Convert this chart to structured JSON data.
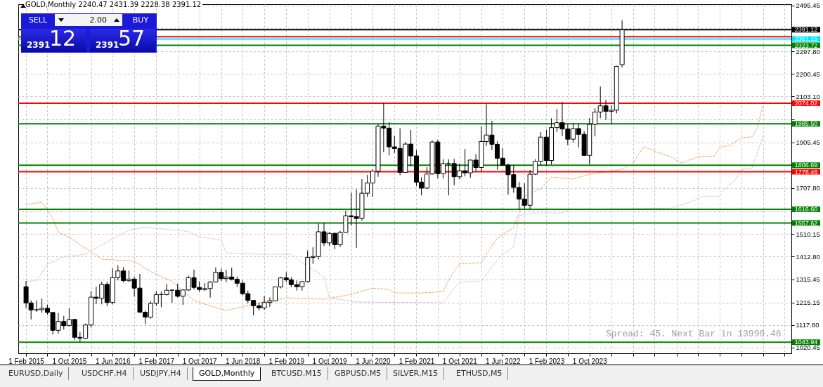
{
  "chart_data": {
    "type": "candlestick",
    "title": "GOLD,Monthly  2240.47 2431.39 2228.38 2391.12",
    "x": [
      "2015-02",
      "2015-03",
      "2015-04",
      "2015-05",
      "2015-06",
      "2015-07",
      "2015-08",
      "2015-09",
      "2015-10",
      "2015-11",
      "2015-12",
      "2016-01",
      "2016-02",
      "2016-03",
      "2016-04",
      "2016-05",
      "2016-06",
      "2016-07",
      "2016-08",
      "2016-09",
      "2016-10",
      "2016-11",
      "2016-12",
      "2017-01",
      "2017-02",
      "2017-03",
      "2017-04",
      "2017-05",
      "2017-06",
      "2017-07",
      "2017-08",
      "2017-09",
      "2017-10",
      "2017-11",
      "2017-12",
      "2018-01",
      "2018-02",
      "2018-03",
      "2018-04",
      "2018-05",
      "2018-06",
      "2018-07",
      "2018-08",
      "2018-09",
      "2018-10",
      "2018-11",
      "2018-12",
      "2019-01",
      "2019-02",
      "2019-03",
      "2019-04",
      "2019-05",
      "2019-06",
      "2019-07",
      "2019-08",
      "2019-09",
      "2019-10",
      "2019-11",
      "2019-12",
      "2020-01",
      "2020-02",
      "2020-03",
      "2020-04",
      "2020-05",
      "2020-06",
      "2020-07",
      "2020-08",
      "2020-09",
      "2020-10",
      "2020-11",
      "2020-12",
      "2021-01",
      "2021-02",
      "2021-03",
      "2021-04",
      "2021-05",
      "2021-06",
      "2021-07",
      "2021-08",
      "2021-09",
      "2021-10",
      "2021-11",
      "2021-12",
      "2022-01",
      "2022-02",
      "2022-03",
      "2022-04",
      "2022-05",
      "2022-06",
      "2022-07",
      "2022-08",
      "2022-09",
      "2022-10",
      "2022-11",
      "2022-12",
      "2023-01",
      "2023-02",
      "2023-03",
      "2023-04",
      "2023-05",
      "2023-06",
      "2023-07",
      "2023-08",
      "2023-09",
      "2023-10",
      "2023-11",
      "2023-12",
      "2024-01",
      "2024-02",
      "2024-03",
      "2024-04"
    ],
    "ohlc": [
      [
        1283,
        1308,
        1191,
        1213
      ],
      [
        1213,
        1224,
        1142,
        1183
      ],
      [
        1183,
        1224,
        1175,
        1184
      ],
      [
        1184,
        1232,
        1170,
        1190
      ],
      [
        1190,
        1205,
        1162,
        1172
      ],
      [
        1172,
        1175,
        1077,
        1095
      ],
      [
        1095,
        1170,
        1080,
        1133
      ],
      [
        1133,
        1157,
        1098,
        1115
      ],
      [
        1115,
        1191,
        1113,
        1142
      ],
      [
        1142,
        1142,
        1052,
        1065
      ],
      [
        1065,
        1088,
        1046,
        1061
      ],
      [
        1061,
        1124,
        1058,
        1118
      ],
      [
        1118,
        1263,
        1107,
        1238
      ],
      [
        1238,
        1283,
        1208,
        1233
      ],
      [
        1233,
        1304,
        1207,
        1293
      ],
      [
        1293,
        1304,
        1199,
        1215
      ],
      [
        1215,
        1362,
        1207,
        1322
      ],
      [
        1322,
        1375,
        1310,
        1351
      ],
      [
        1351,
        1367,
        1302,
        1309
      ],
      [
        1309,
        1353,
        1302,
        1316
      ],
      [
        1316,
        1326,
        1241,
        1277
      ],
      [
        1277,
        1338,
        1171,
        1173
      ],
      [
        1173,
        1180,
        1122,
        1152
      ],
      [
        1152,
        1220,
        1146,
        1211
      ],
      [
        1211,
        1264,
        1200,
        1249
      ],
      [
        1249,
        1262,
        1195,
        1249
      ],
      [
        1249,
        1295,
        1245,
        1268
      ],
      [
        1268,
        1270,
        1214,
        1268
      ],
      [
        1268,
        1296,
        1236,
        1242
      ],
      [
        1242,
        1272,
        1205,
        1269
      ],
      [
        1269,
        1331,
        1265,
        1322
      ],
      [
        1322,
        1357,
        1271,
        1280
      ],
      [
        1280,
        1306,
        1260,
        1271
      ],
      [
        1271,
        1299,
        1264,
        1275
      ],
      [
        1275,
        1307,
        1236,
        1303
      ],
      [
        1303,
        1366,
        1302,
        1345
      ],
      [
        1345,
        1362,
        1307,
        1318
      ],
      [
        1318,
        1356,
        1303,
        1325
      ],
      [
        1325,
        1365,
        1310,
        1315
      ],
      [
        1315,
        1326,
        1282,
        1298
      ],
      [
        1298,
        1310,
        1246,
        1253
      ],
      [
        1253,
        1266,
        1211,
        1224
      ],
      [
        1224,
        1225,
        1160,
        1201
      ],
      [
        1201,
        1214,
        1180,
        1192
      ],
      [
        1192,
        1243,
        1183,
        1215
      ],
      [
        1215,
        1237,
        1196,
        1222
      ],
      [
        1222,
        1284,
        1221,
        1282
      ],
      [
        1282,
        1326,
        1276,
        1321
      ],
      [
        1321,
        1346,
        1303,
        1313
      ],
      [
        1313,
        1324,
        1281,
        1292
      ],
      [
        1292,
        1310,
        1266,
        1283
      ],
      [
        1283,
        1306,
        1266,
        1305
      ],
      [
        1305,
        1439,
        1301,
        1409
      ],
      [
        1409,
        1453,
        1382,
        1413
      ],
      [
        1413,
        1555,
        1400,
        1520
      ],
      [
        1520,
        1557,
        1459,
        1472
      ],
      [
        1472,
        1518,
        1459,
        1513
      ],
      [
        1513,
        1516,
        1445,
        1464
      ],
      [
        1464,
        1524,
        1454,
        1517
      ],
      [
        1517,
        1611,
        1517,
        1589
      ],
      [
        1589,
        1689,
        1547,
        1585
      ],
      [
        1585,
        1703,
        1451,
        1577
      ],
      [
        1577,
        1747,
        1568,
        1686
      ],
      [
        1686,
        1765,
        1670,
        1730
      ],
      [
        1730,
        1789,
        1671,
        1781
      ],
      [
        1781,
        1983,
        1757,
        1975
      ],
      [
        1975,
        2075,
        1863,
        1967
      ],
      [
        1967,
        1992,
        1849,
        1886
      ],
      [
        1886,
        1933,
        1860,
        1879
      ],
      [
        1879,
        1966,
        1764,
        1776
      ],
      [
        1776,
        1907,
        1775,
        1898
      ],
      [
        1898,
        1959,
        1803,
        1847
      ],
      [
        1847,
        1872,
        1717,
        1734
      ],
      [
        1734,
        1755,
        1677,
        1708
      ],
      [
        1708,
        1798,
        1705,
        1769
      ],
      [
        1769,
        1913,
        1766,
        1907
      ],
      [
        1907,
        1917,
        1750,
        1770
      ],
      [
        1770,
        1833,
        1750,
        1814
      ],
      [
        1814,
        1832,
        1677,
        1814
      ],
      [
        1814,
        1834,
        1721,
        1757
      ],
      [
        1757,
        1814,
        1746,
        1783
      ],
      [
        1783,
        1877,
        1759,
        1774
      ],
      [
        1774,
        1831,
        1753,
        1829
      ],
      [
        1829,
        1854,
        1781,
        1797
      ],
      [
        1797,
        1974,
        1780,
        1909
      ],
      [
        1909,
        2070,
        1890,
        1937
      ],
      [
        1937,
        1998,
        1872,
        1897
      ],
      [
        1897,
        1910,
        1787,
        1837
      ],
      [
        1837,
        1880,
        1805,
        1807
      ],
      [
        1807,
        1814,
        1681,
        1766
      ],
      [
        1766,
        1808,
        1688,
        1711
      ],
      [
        1711,
        1735,
        1615,
        1661
      ],
      [
        1661,
        1729,
        1617,
        1634
      ],
      [
        1634,
        1786,
        1616,
        1768
      ],
      [
        1768,
        1833,
        1765,
        1824
      ],
      [
        1824,
        1950,
        1805,
        1928
      ],
      [
        1928,
        1960,
        1805,
        1827
      ],
      [
        1827,
        2009,
        1810,
        1969
      ],
      [
        1969,
        2049,
        1950,
        1990
      ],
      [
        1990,
        2079,
        1932,
        1963
      ],
      [
        1963,
        1984,
        1893,
        1919
      ],
      [
        1919,
        1987,
        1903,
        1965
      ],
      [
        1965,
        1987,
        1884,
        1940
      ],
      [
        1940,
        1953,
        1848,
        1849
      ],
      [
        1849,
        2010,
        1810,
        1983
      ],
      [
        1983,
        2052,
        1931,
        2036
      ],
      [
        2036,
        2146,
        2010,
        2063
      ],
      [
        2063,
        2088,
        2002,
        2039
      ],
      [
        2039,
        2065,
        1984,
        2044
      ],
      [
        2044,
        2236,
        2030,
        2233
      ],
      [
        2240.47,
        2431.39,
        2228.38,
        2391.12
      ]
    ],
    "series": [
      {
        "type": "line",
        "color": "#f4a460",
        "line_style": "dashed",
        "x": [
          "2015-02",
          "2015-05",
          "2015-07",
          "2015-08",
          "2015-10",
          "2015-12",
          "2016-02",
          "2016-04",
          "2016-10",
          "2017-01",
          "2017-05",
          "2017-09",
          "2018-01",
          "2018-03",
          "2018-06",
          "2018-09",
          "2019-02",
          "2019-09",
          "2020-02",
          "2020-06",
          "2020-09",
          "2020-10",
          "2021-03",
          "2021-07",
          "2021-08",
          "2021-10",
          "2022-02",
          "2022-03",
          "2022-05",
          "2022-08",
          "2022-09",
          "2022-10",
          "2023-01",
          "2023-03",
          "2023-07",
          "2023-10",
          "2024-04",
          "2024-06",
          "2024-08",
          "2024-10",
          "2025-01",
          "2025-03",
          "2025-06",
          "2025-09",
          "2025-10",
          "2025-12",
          "2026-02",
          "2026-04",
          "2026-05",
          "2026-06"
        ],
        "values": [
          1637,
          1647,
          1580,
          1518,
          1497,
          1464,
          1434,
          1402,
          1393,
          1348,
          1306,
          1223,
          1193,
          1181,
          1196,
          1214,
          1235,
          1229,
          1250,
          1277,
          1271,
          1256,
          1256,
          1262,
          1312,
          1381,
          1387,
          1423,
          1491,
          1539,
          1601,
          1673,
          1706,
          1756,
          1747,
          1768,
          1789,
          1816,
          1887,
          1867,
          1843,
          1816,
          1843,
          1846,
          1884,
          1893,
          1926,
          1929,
          1968,
          2066
        ]
      },
      {
        "type": "line",
        "color": "#d8bfd8",
        "line_style": "dashed",
        "x": [
          "2015-02",
          "2015-04",
          "2015-06",
          "2015-09",
          "2016-01",
          "2016-04",
          "2016-09",
          "2016-12",
          "2017-08",
          "2017-10",
          "2018-02",
          "2018-03",
          "2018-09",
          "2019-03",
          "2019-04",
          "2019-09",
          "2019-10",
          "2020-03",
          "2021-07",
          "2021-08",
          "2021-10",
          "2022-02",
          "2022-04",
          "2022-06",
          "2022-08",
          "2022-09",
          "2022-11",
          "2023-05",
          "2023-06",
          "2025-01",
          "2025-04",
          "2025-07",
          "2025-10",
          "2025-11",
          "2026-01",
          "2026-02",
          "2026-04",
          "2026-06"
        ],
        "values": [
          1306,
          1309,
          1381,
          1411,
          1423,
          1464,
          1527,
          1539,
          1521,
          1497,
          1485,
          1429,
          1423,
          1423,
          1402,
          1327,
          1235,
          1217,
          1214,
          1244,
          1303,
          1306,
          1369,
          1423,
          1455,
          1589,
          1601,
          1601,
          1616,
          1622,
          1643,
          1673,
          1673,
          1706,
          1747,
          1789,
          1795,
          1929
        ]
      }
    ],
    "xlim": [
      "2015-01-08",
      "2026-10-19"
    ],
    "xticks": [
      {
        "value": "2015-02",
        "label": "1 Feb 2015"
      },
      {
        "value": "2015-06",
        "label": null
      },
      {
        "value": "2015-10",
        "label": "1 Oct 2015"
      },
      {
        "value": "2016-02",
        "label": null
      },
      {
        "value": "2016-06",
        "label": "1 Jun 2016"
      },
      {
        "value": "2016-10",
        "label": null
      },
      {
        "value": "2017-02",
        "label": "1 Feb 2017"
      },
      {
        "value": "2017-06",
        "label": null
      },
      {
        "value": "2017-10",
        "label": "1 Oct 2017"
      },
      {
        "value": "2018-02",
        "label": null
      },
      {
        "value": "2018-06",
        "label": "1 Jun 2018"
      },
      {
        "value": "2018-10",
        "label": null
      },
      {
        "value": "2019-02",
        "label": "1 Feb 2019"
      },
      {
        "value": "2019-06",
        "label": null
      },
      {
        "value": "2019-10",
        "label": "1 Oct 2019"
      },
      {
        "value": "2020-02",
        "label": null
      },
      {
        "value": "2020-06",
        "label": "1 Jun 2020"
      },
      {
        "value": "2020-10",
        "label": null
      },
      {
        "value": "2021-02",
        "label": "1 Feb 2021"
      },
      {
        "value": "2021-06",
        "label": null
      },
      {
        "value": "2021-10",
        "label": "1 Oct 2021"
      },
      {
        "value": "2022-02",
        "label": null
      },
      {
        "value": "2022-06",
        "label": "1 Jun 2022"
      },
      {
        "value": "2022-10",
        "label": null
      },
      {
        "value": "2023-02",
        "label": "1 Feb 2023"
      },
      {
        "value": "2023-06",
        "label": null
      },
      {
        "value": "2023-10",
        "label": "1 Oct 2023"
      },
      {
        "value": "2024-02",
        "label": null
      },
      {
        "value": "2024-06",
        "label": null
      },
      {
        "value": "2024-10",
        "label": null
      },
      {
        "value": "2025-02",
        "label": null
      },
      {
        "value": "2025-06",
        "label": null
      },
      {
        "value": "2025-10",
        "label": null
      },
      {
        "value": "2026-02",
        "label": null
      },
      {
        "value": "2026-06",
        "label": null
      },
      {
        "value": "2026-10",
        "label": null
      }
    ],
    "ylim": [
      996,
      2501
    ],
    "yticks": [
      1020.45,
      {
        "value": 1117.8,
        "label": "1117.80"
      },
      1215.15,
      1315.45,
      {
        "value": 1412.8,
        "label": "1412.80"
      },
      1510.15,
      {
        "value": 1607.8,
        "label": null
      },
      {
        "value": 1707.8,
        "label": "1707.80"
      },
      {
        "value": 1806.5,
        "label": null
      },
      1905.45,
      {
        "value": 2003.8,
        "label": null
      },
      {
        "value": 2103.1,
        "label": "2103.10"
      },
      2200.45,
      {
        "value": 2297.8,
        "label": "2297.80"
      },
      {
        "value": 2397.8,
        "label": null
      },
      2495.45
    ],
    "grid": true,
    "ref_lines": [
      {
        "axis": "y",
        "value": 2391.12,
        "label": "2391.12",
        "color": "#000000"
      },
      {
        "axis": "y",
        "value": 2361,
        "label": null,
        "color": "#ff0000"
      },
      {
        "axis": "y",
        "value": 2351.15,
        "label": "2351.15",
        "color": "#00e5ff"
      },
      {
        "axis": "y",
        "value": 2323.72,
        "label": "2323.72",
        "color": "#008000"
      },
      {
        "axis": "y",
        "value": 2074.02,
        "label": "2074.02",
        "color": "#ff0000"
      },
      {
        "axis": "y",
        "value": 1985.5,
        "label": "1985.50",
        "color": "#008000"
      },
      {
        "axis": "y",
        "value": 1806.69,
        "label": "1806.69",
        "color": "#008000"
      },
      {
        "axis": "y",
        "value": 1778.46,
        "label": "1778.46",
        "color": "#ff0000"
      },
      {
        "axis": "y",
        "value": 1616.6,
        "label": "1616.60",
        "color": "#008000"
      },
      {
        "axis": "y",
        "value": 1557.62,
        "label": "1557.62",
        "color": "#008000"
      },
      {
        "axis": "y",
        "value": 1043.94,
        "label": "1043.94",
        "color": "#008000"
      }
    ],
    "annotations": [
      "Spread: 45. Next Bar in 13999.46",
      "SELL",
      "2.00",
      "BUY",
      "2391",
      "12",
      "2391",
      "57",
      "EURUSD,Daily",
      "USDCHF,H4",
      "USDJPY,H4",
      "GOLD,Monthly",
      "BTCUSD,M15",
      "GBPUSD,M5",
      "SILVER,M15",
      "ETHUSD,M5"
    ]
  }
}
